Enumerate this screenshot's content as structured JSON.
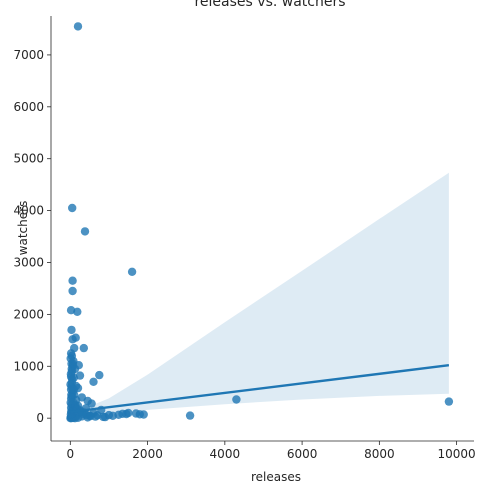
{
  "chart_data": {
    "type": "scatter",
    "title": "releases vs. watchers",
    "xlabel": "releases",
    "ylabel": "watchers",
    "xlim": [
      -500,
      10450
    ],
    "ylim": [
      -440,
      7750
    ],
    "xticks": [
      0,
      2000,
      4000,
      6000,
      8000,
      10000
    ],
    "yticks": [
      0,
      1000,
      2000,
      3000,
      4000,
      5000,
      6000,
      7000
    ],
    "grid": false,
    "colors": {
      "points": "#1f77b4",
      "line": "#1f77b4",
      "band": "#1f77b4",
      "axis": "#262626"
    },
    "points": [
      [
        200,
        7550
      ],
      [
        50,
        4050
      ],
      [
        380,
        3600
      ],
      [
        1600,
        2820
      ],
      [
        60,
        2650
      ],
      [
        60,
        2450
      ],
      [
        180,
        2050
      ],
      [
        20,
        2080
      ],
      [
        30,
        1700
      ],
      [
        140,
        1550
      ],
      [
        60,
        1520
      ],
      [
        100,
        1350
      ],
      [
        350,
        1350
      ],
      [
        20,
        1250
      ],
      [
        40,
        1200
      ],
      [
        80,
        1100
      ],
      [
        30,
        1050
      ],
      [
        220,
        1020
      ],
      [
        60,
        1000
      ],
      [
        120,
        950
      ],
      [
        40,
        900
      ],
      [
        750,
        830
      ],
      [
        250,
        820
      ],
      [
        20,
        800
      ],
      [
        90,
        780
      ],
      [
        600,
        700
      ],
      [
        40,
        680
      ],
      [
        150,
        620
      ],
      [
        30,
        600
      ],
      [
        200,
        580
      ],
      [
        20,
        550
      ],
      [
        60,
        500
      ],
      [
        100,
        450
      ],
      [
        40,
        420
      ],
      [
        300,
        400
      ],
      [
        20,
        380
      ],
      [
        150,
        350
      ],
      [
        450,
        330
      ],
      [
        4300,
        360
      ],
      [
        9800,
        320
      ],
      [
        80,
        300
      ],
      [
        550,
        280
      ],
      [
        30,
        260
      ],
      [
        200,
        240
      ],
      [
        120,
        220
      ],
      [
        20,
        200
      ],
      [
        400,
        190
      ],
      [
        60,
        180
      ],
      [
        800,
        160
      ],
      [
        250,
        150
      ],
      [
        40,
        140
      ],
      [
        100,
        130
      ],
      [
        20,
        120
      ],
      [
        350,
        110
      ],
      [
        600,
        100
      ],
      [
        1500,
        100
      ],
      [
        1700,
        90
      ],
      [
        1350,
        85
      ],
      [
        1900,
        70
      ],
      [
        1000,
        60
      ],
      [
        700,
        55
      ],
      [
        3100,
        50
      ],
      [
        500,
        45
      ],
      [
        150,
        40
      ],
      [
        300,
        35
      ],
      [
        60,
        30
      ],
      [
        20,
        25
      ],
      [
        900,
        20
      ],
      [
        450,
        15
      ],
      [
        10,
        10
      ],
      [
        200,
        8
      ],
      [
        80,
        5
      ],
      [
        30,
        2
      ],
      [
        5,
        0
      ],
      [
        120,
        0
      ],
      [
        15,
        70
      ],
      [
        50,
        90
      ],
      [
        10,
        300
      ],
      [
        25,
        450
      ],
      [
        5,
        650
      ],
      [
        15,
        850
      ],
      [
        35,
        950
      ],
      [
        70,
        1050
      ],
      [
        10,
        1150
      ],
      [
        45,
        750
      ],
      [
        90,
        550
      ],
      [
        130,
        250
      ],
      [
        180,
        180
      ],
      [
        260,
        120
      ],
      [
        320,
        80
      ],
      [
        420,
        60
      ],
      [
        520,
        40
      ],
      [
        650,
        30
      ],
      [
        850,
        25
      ],
      [
        1100,
        45
      ],
      [
        1250,
        65
      ],
      [
        1450,
        80
      ],
      [
        1800,
        75
      ]
    ],
    "regression": {
      "line": [
        [
          0,
          120
        ],
        [
          9800,
          1020
        ]
      ],
      "ci_band": [
        [
          0,
          0
        ],
        [
          500,
          55
        ],
        [
          1000,
          90
        ],
        [
          2000,
          160
        ],
        [
          4000,
          270
        ],
        [
          6000,
          360
        ],
        [
          8000,
          430
        ],
        [
          9800,
          470
        ],
        [
          9800,
          4730
        ],
        [
          8000,
          3840
        ],
        [
          6000,
          2840
        ],
        [
          4000,
          1850
        ],
        [
          2000,
          840
        ],
        [
          1000,
          380
        ],
        [
          500,
          230
        ],
        [
          0,
          200
        ]
      ]
    }
  }
}
